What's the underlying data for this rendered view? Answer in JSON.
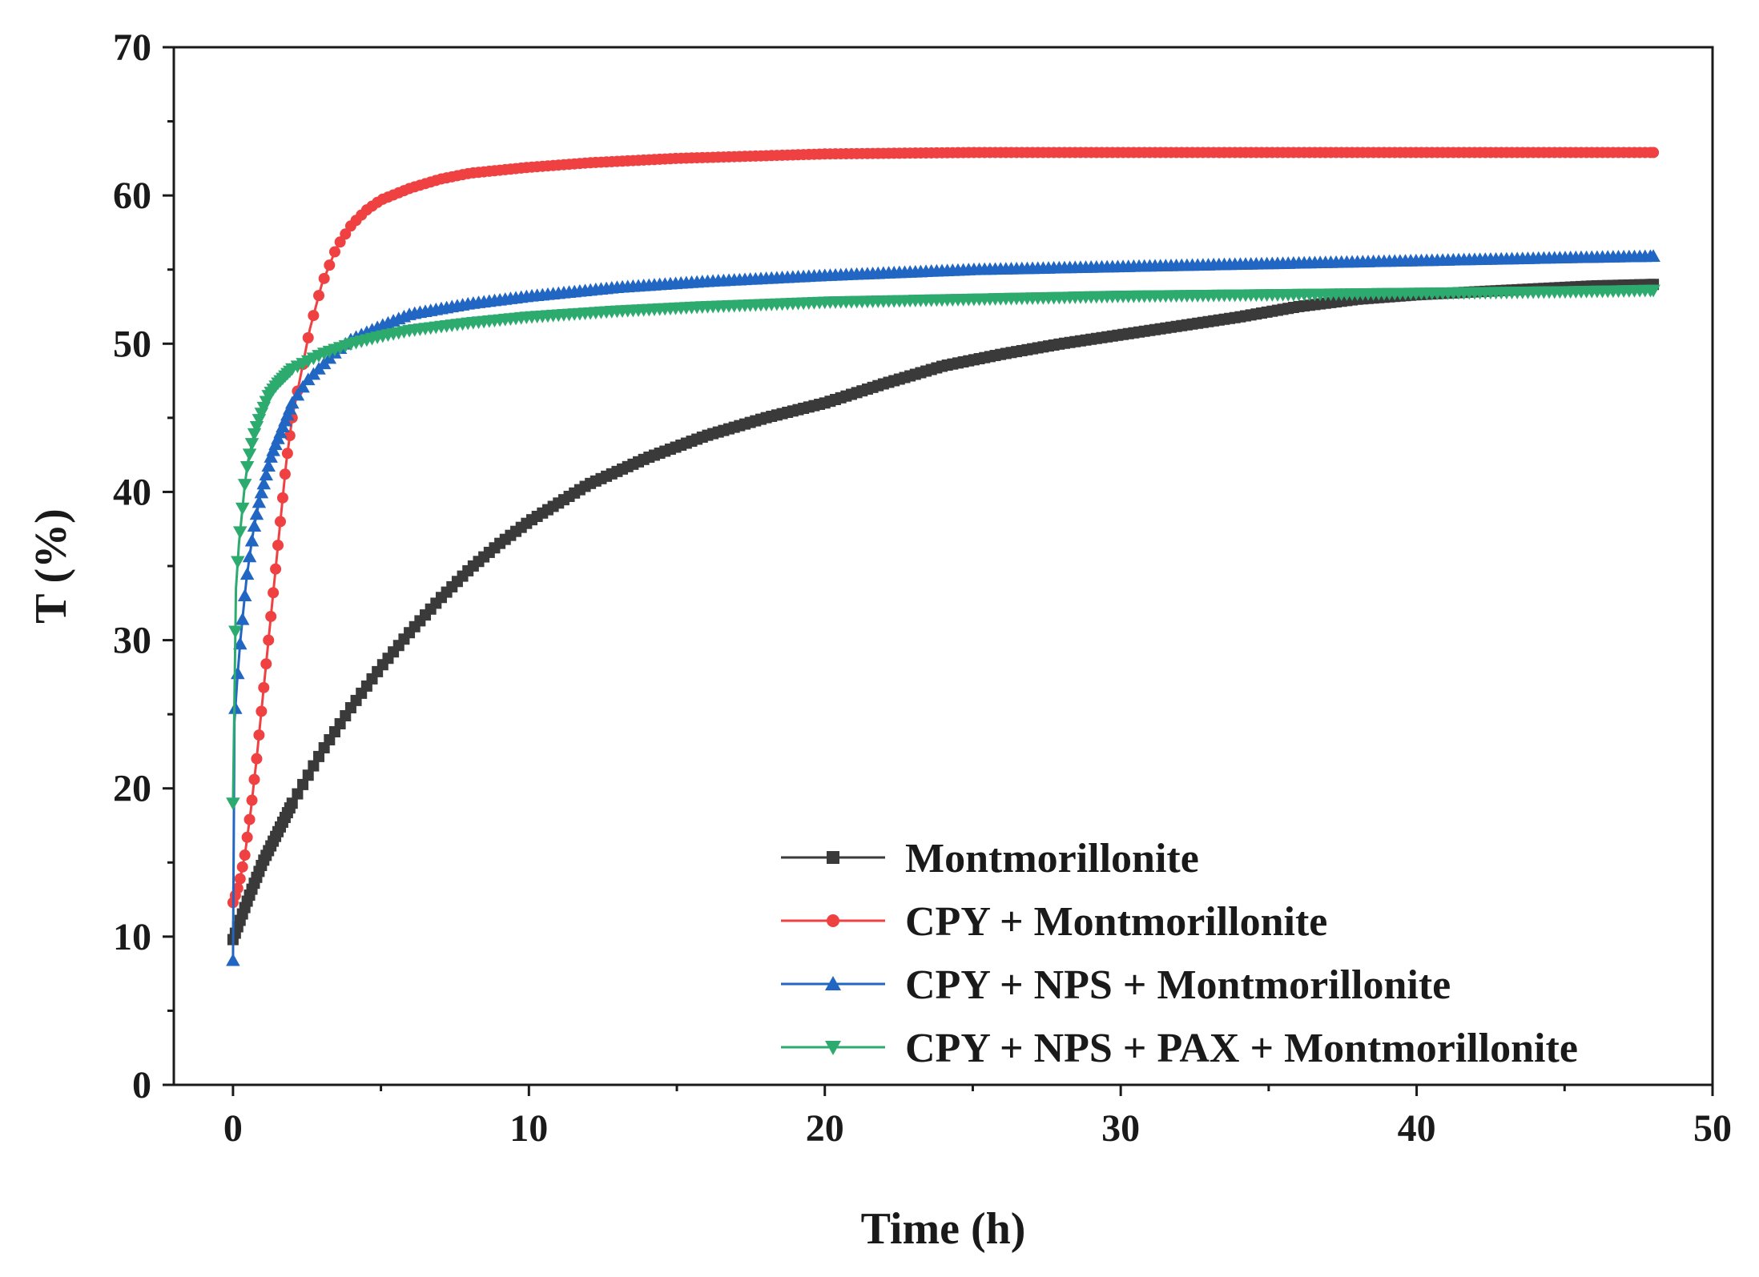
{
  "chart_data": {
    "type": "line",
    "title": "",
    "xlabel": "Time (h)",
    "ylabel": "T (%)",
    "xlim": [
      -2,
      50
    ],
    "ylim": [
      0,
      70
    ],
    "xticks": [
      0,
      10,
      20,
      30,
      40,
      50
    ],
    "xtick_labels": [
      "0",
      "10",
      "20",
      "30",
      "40",
      "50"
    ],
    "yticks": [
      0,
      10,
      20,
      30,
      40,
      50,
      60,
      70
    ],
    "ytick_labels": [
      "0",
      "10",
      "20",
      "30",
      "40",
      "50",
      "60",
      "70"
    ],
    "legend_position": "bottom-right",
    "grid": false,
    "series": [
      {
        "name": "Montmorillonite",
        "color": "#3a3a3a",
        "marker": "square",
        "points": [
          [
            0,
            9.8
          ],
          [
            0.5,
            12.5
          ],
          [
            1,
            15
          ],
          [
            2,
            19
          ],
          [
            3,
            22.5
          ],
          [
            4,
            25.5
          ],
          [
            5,
            28.2
          ],
          [
            6,
            30.6
          ],
          [
            7,
            32.8
          ],
          [
            8,
            34.8
          ],
          [
            9,
            36.5
          ],
          [
            10,
            38
          ],
          [
            12,
            40.5
          ],
          [
            14,
            42.3
          ],
          [
            16,
            43.8
          ],
          [
            18,
            45
          ],
          [
            20,
            46
          ],
          [
            22,
            47.3
          ],
          [
            24,
            48.5
          ],
          [
            26,
            49.3
          ],
          [
            28,
            50
          ],
          [
            30,
            50.6
          ],
          [
            32,
            51.2
          ],
          [
            34,
            51.8
          ],
          [
            36,
            52.5
          ],
          [
            38,
            53
          ],
          [
            40,
            53.3
          ],
          [
            42,
            53.5
          ],
          [
            44,
            53.7
          ],
          [
            46,
            53.9
          ],
          [
            48,
            54
          ]
        ]
      },
      {
        "name": "CPY + Montmorillonite",
        "color": "#ef4141",
        "marker": "circle",
        "points": [
          [
            0,
            12.3
          ],
          [
            0.2,
            13.5
          ],
          [
            0.4,
            15.5
          ],
          [
            0.6,
            18.5
          ],
          [
            0.8,
            22
          ],
          [
            1,
            26
          ],
          [
            1.2,
            30
          ],
          [
            1.4,
            34
          ],
          [
            1.6,
            38
          ],
          [
            1.8,
            42
          ],
          [
            2,
            45
          ],
          [
            2.3,
            48
          ],
          [
            2.6,
            51
          ],
          [
            3,
            54
          ],
          [
            3.5,
            56.5
          ],
          [
            4,
            58
          ],
          [
            4.5,
            59
          ],
          [
            5,
            59.7
          ],
          [
            6,
            60.5
          ],
          [
            7,
            61.1
          ],
          [
            8,
            61.5
          ],
          [
            10,
            61.9
          ],
          [
            12,
            62.2
          ],
          [
            15,
            62.5
          ],
          [
            20,
            62.8
          ],
          [
            25,
            62.9
          ],
          [
            30,
            62.9
          ],
          [
            35,
            62.9
          ],
          [
            40,
            62.9
          ],
          [
            45,
            62.9
          ],
          [
            48,
            62.9
          ]
        ]
      },
      {
        "name": "CPY + NPS + Montmorillonite",
        "color": "#2266c4",
        "marker": "triangle-up",
        "points": [
          [
            0,
            8.4
          ],
          [
            0.05,
            24.5
          ],
          [
            0.15,
            27.5
          ],
          [
            0.25,
            30
          ],
          [
            0.35,
            32
          ],
          [
            0.45,
            34
          ],
          [
            0.55,
            35.5
          ],
          [
            0.7,
            37.5
          ],
          [
            0.9,
            39.5
          ],
          [
            1.1,
            41
          ],
          [
            1.3,
            42.5
          ],
          [
            1.6,
            44
          ],
          [
            2,
            46
          ],
          [
            2.5,
            47.5
          ],
          [
            3,
            48.5
          ],
          [
            3.5,
            49.5
          ],
          [
            4,
            50.3
          ],
          [
            5,
            51.2
          ],
          [
            6,
            52
          ],
          [
            8,
            52.7
          ],
          [
            10,
            53.2
          ],
          [
            13,
            53.8
          ],
          [
            16,
            54.2
          ],
          [
            20,
            54.6
          ],
          [
            25,
            55
          ],
          [
            30,
            55.2
          ],
          [
            35,
            55.4
          ],
          [
            40,
            55.6
          ],
          [
            45,
            55.8
          ],
          [
            48,
            55.9
          ]
        ]
      },
      {
        "name": "CPY + NPS + PAX + Montmorillonite",
        "color": "#2dab6e",
        "marker": "triangle-down",
        "points": [
          [
            0,
            19
          ],
          [
            0.1,
            33.5
          ],
          [
            0.2,
            36.5
          ],
          [
            0.3,
            38.5
          ],
          [
            0.4,
            40.5
          ],
          [
            0.5,
            42
          ],
          [
            0.7,
            43.8
          ],
          [
            0.9,
            45
          ],
          [
            1.2,
            46.5
          ],
          [
            1.5,
            47.3
          ],
          [
            2,
            48.3
          ],
          [
            2.5,
            48.8
          ],
          [
            3,
            49.3
          ],
          [
            4,
            50
          ],
          [
            5,
            50.5
          ],
          [
            6,
            50.9
          ],
          [
            8,
            51.4
          ],
          [
            10,
            51.8
          ],
          [
            13,
            52.2
          ],
          [
            16,
            52.5
          ],
          [
            20,
            52.8
          ],
          [
            25,
            53
          ],
          [
            30,
            53.2
          ],
          [
            35,
            53.3
          ],
          [
            40,
            53.4
          ],
          [
            45,
            53.5
          ],
          [
            48,
            53.6
          ]
        ]
      }
    ]
  }
}
